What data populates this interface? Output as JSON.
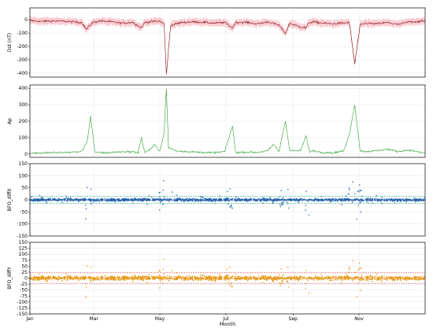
{
  "figure": {
    "xlabel": "Month"
  },
  "x_ticks": [
    "Jan",
    "Mar",
    "May",
    "Jul",
    "Sep",
    "Nov"
  ],
  "chart_data": [
    {
      "type": "line",
      "ylabel": "Dst (nT)",
      "ylim": [
        -430,
        90
      ],
      "yticks": [
        0,
        -100,
        -200,
        -300,
        -400
      ],
      "grid": true,
      "color": "#8b1a1a",
      "band_color": "#f4a6b0",
      "series": [
        {
          "x": [
            0,
            10,
            20,
            30,
            40,
            48,
            52,
            58,
            65,
            75,
            85,
            95,
            103,
            106,
            110,
            120,
            124,
            126,
            130,
            140,
            150,
            160,
            170,
            180,
            187,
            190,
            200,
            210,
            220,
            230,
            236,
            240,
            248,
            255,
            258,
            262,
            270,
            280,
            295,
            300,
            305,
            310,
            320,
            330,
            340,
            350,
            360,
            365
          ],
          "y": [
            -5,
            -12,
            -8,
            -10,
            -15,
            -20,
            -70,
            -20,
            -8,
            -15,
            -25,
            -18,
            -60,
            -20,
            -15,
            -10,
            -30,
            -410,
            -40,
            -20,
            -15,
            -18,
            -25,
            -20,
            -60,
            -20,
            -18,
            -30,
            -15,
            -40,
            -100,
            -25,
            -50,
            -60,
            -20,
            -15,
            -25,
            -30,
            -20,
            -330,
            -40,
            -25,
            -30,
            -20,
            -35,
            -15,
            -12,
            -10
          ]
        }
      ]
    },
    {
      "type": "line",
      "ylabel": "Ap",
      "ylim": [
        -20,
        420
      ],
      "yticks": [
        0,
        100,
        200,
        300,
        400
      ],
      "grid": true,
      "color": "#2ca02c",
      "series": [
        {
          "x": [
            0,
            15,
            30,
            40,
            48,
            53,
            56,
            60,
            70,
            80,
            90,
            100,
            103,
            106,
            110,
            115,
            120,
            124,
            126,
            128,
            135,
            145,
            160,
            170,
            180,
            187,
            190,
            200,
            210,
            220,
            225,
            230,
            236,
            240,
            250,
            255,
            258,
            262,
            270,
            280,
            290,
            295,
            300,
            305,
            310,
            320,
            330,
            340,
            350,
            360,
            365
          ],
          "y": [
            5,
            8,
            10,
            12,
            15,
            80,
            230,
            10,
            8,
            12,
            15,
            10,
            100,
            10,
            20,
            60,
            15,
            130,
            400,
            40,
            20,
            15,
            10,
            8,
            15,
            170,
            10,
            12,
            10,
            20,
            60,
            15,
            200,
            20,
            20,
            110,
            15,
            20,
            10,
            8,
            20,
            120,
            300,
            20,
            15,
            20,
            30,
            15,
            25,
            10,
            8
          ]
        }
      ]
    },
    {
      "type": "scatter",
      "ylabel": "BFO_diffX",
      "ylim": [
        -150,
        150
      ],
      "yticks": [
        150,
        100,
        50,
        0,
        -50,
        -100,
        -150
      ],
      "grid": true,
      "color": "#1f5fa8",
      "ref_lines": [
        14,
        -14
      ]
    },
    {
      "type": "scatter",
      "ylabel": "BFO_diffY",
      "ylim": [
        -150,
        150
      ],
      "yticks": [
        150,
        125,
        100,
        75,
        50,
        25,
        0,
        -25,
        -50,
        -75,
        -100,
        -125,
        -150
      ],
      "grid": true,
      "color": "#e8940e",
      "ref_lines": [
        22,
        -22
      ]
    }
  ]
}
